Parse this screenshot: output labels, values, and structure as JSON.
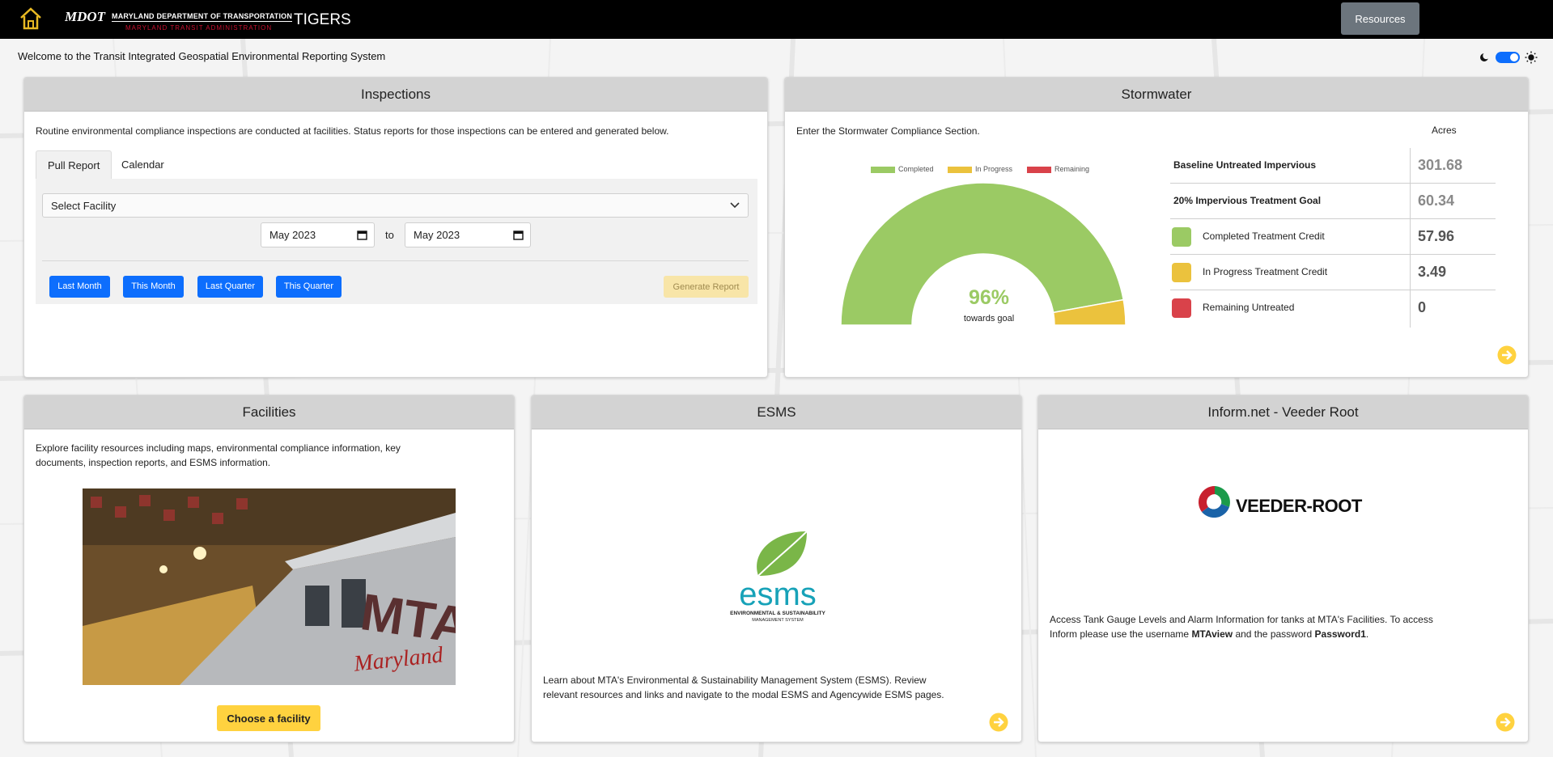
{
  "topbar": {
    "logo_mdot": "MDOT",
    "logo_dept": "MARYLAND DEPARTMENT OF TRANSPORTATION",
    "logo_mta": "MARYLAND TRANSIT ADMINISTRATION",
    "app_title": "TIGERS",
    "resources_label": "Resources"
  },
  "welcome": "Welcome to the Transit Integrated Geospatial Environmental Reporting System",
  "inspections": {
    "title": "Inspections",
    "description": "Routine environmental compliance inspections are conducted at facilities. Status reports for those inspections can be entered and generated below.",
    "tabs": [
      "Pull Report",
      "Calendar"
    ],
    "select_placeholder": "Select Facility",
    "date_from": "May 2023",
    "date_to": "May 2023",
    "to_label": "to",
    "quick_buttons": [
      "Last Month",
      "This Month",
      "Last Quarter",
      "This Quarter"
    ],
    "generate_label": "Generate Report"
  },
  "stormwater": {
    "title": "Stormwater",
    "description": "Enter the Stormwater Compliance Section.",
    "legend": [
      {
        "label": "Completed",
        "color": "#9bca64"
      },
      {
        "label": "In Progress",
        "color": "#ebc23d"
      },
      {
        "label": "Remaining",
        "color": "#d9424a"
      }
    ],
    "gauge_percent": "96%",
    "gauge_caption": "towards goal",
    "gauge_completed_fraction": 0.943,
    "acres_header": "Acres",
    "rows": [
      {
        "label": "Baseline Untreated Impervious",
        "value": "301.68",
        "swatch": ""
      },
      {
        "label": "20% Impervious Treatment Goal",
        "value": "60.34",
        "swatch": ""
      },
      {
        "label": "Completed Treatment Credit",
        "value": "57.96",
        "swatch": "#9bca64"
      },
      {
        "label": "In Progress Treatment Credit",
        "value": "3.49",
        "swatch": "#ebc23d"
      },
      {
        "label": "Remaining Untreated",
        "value": "0",
        "swatch": "#d9424a"
      }
    ]
  },
  "facilities": {
    "title": "Facilities",
    "description": "Explore facility resources including maps, environmental compliance information, key documents, inspection reports, and ESMS information.",
    "button_label": "Choose a facility",
    "photo_text_mta": "MTA",
    "photo_text_maryland": "Maryland"
  },
  "esms": {
    "title": "ESMS",
    "logo_text": "esms",
    "logo_subtitle": "ENVIRONMENTAL & SUSTAINABILITY",
    "logo_subtitle2": "MANAGEMENT SYSTEM",
    "description": "Learn about MTA's Environmental & Sustainability Management System (ESMS). Review relevant resources and links and navigate to the modal ESMS and Agencywide ESMS pages."
  },
  "veeder": {
    "title": "Inform.net - Veeder Root",
    "logo_text": "VEEDER-ROOT",
    "text_1": "Access Tank Gauge Levels and Alarm Information for tanks at MTA's Facilities. To access Inform please use the username ",
    "username": "MTAview",
    "text_2": " and the password ",
    "password": "Password1",
    "text_3": "."
  },
  "colors": {
    "primary_button": "#0d6efd",
    "accent_yellow": "#ffd23f",
    "completed": "#9bca64",
    "in_progress": "#ebc23d",
    "remaining": "#d9424a"
  }
}
